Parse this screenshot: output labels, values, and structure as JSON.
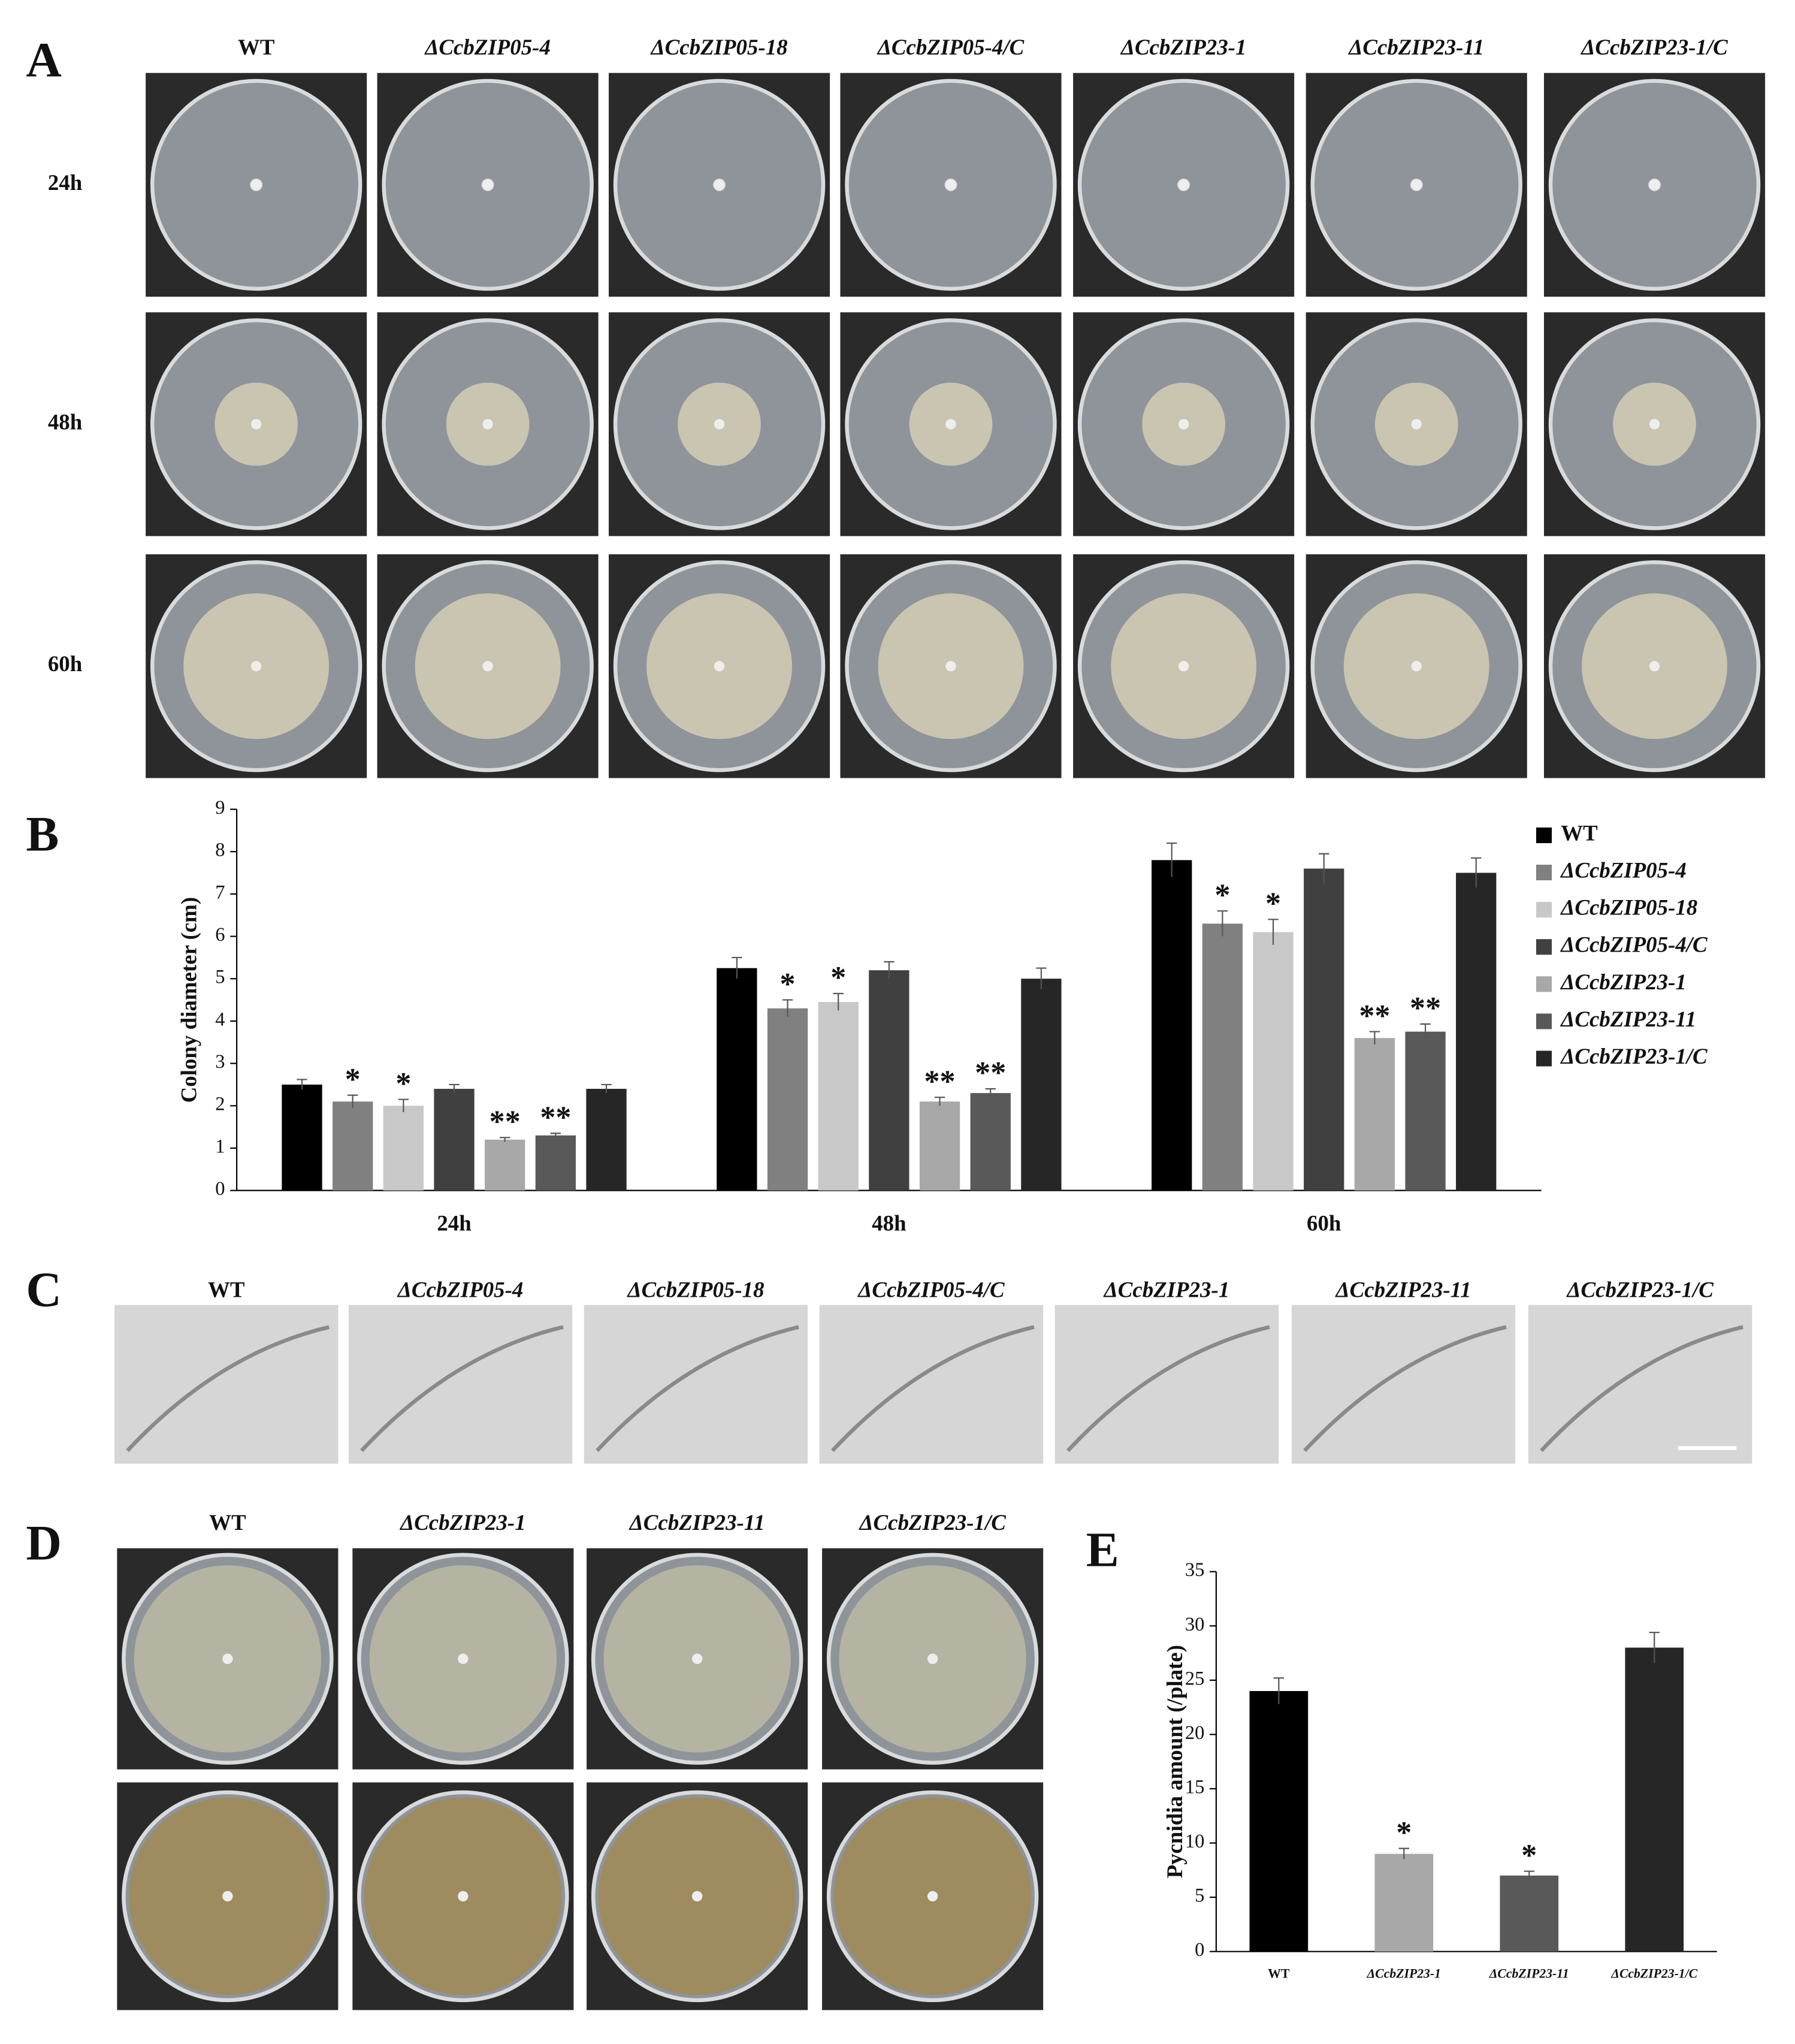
{
  "panels": {
    "a": "A",
    "b": "B",
    "c": "C",
    "d": "D",
    "e": "E"
  },
  "panel_a": {
    "strains": [
      "WT",
      "ΔCcbZIP05-4",
      "ΔCcbZIP05-18",
      "ΔCcbZIP05-4/C",
      "ΔCcbZIP23-1",
      "ΔCcbZIP23-11",
      "ΔCcbZIP23-1/C"
    ],
    "times": [
      "24h",
      "48h",
      "60h"
    ]
  },
  "panel_c": {
    "strains": [
      "WT",
      "ΔCcbZIP05-4",
      "ΔCcbZIP05-18",
      "ΔCcbZIP05-4/C",
      "ΔCcbZIP23-1",
      "ΔCcbZIP23-11",
      "ΔCcbZIP23-1/C"
    ]
  },
  "panel_d": {
    "strains": [
      "WT",
      "ΔCcbZIP23-1",
      "ΔCcbZIP23-11",
      "ΔCcbZIP23-1/C"
    ]
  },
  "chart_data": [
    {
      "type": "bar",
      "ylabel": "Colony diameter (cm)",
      "categories": [
        "24h",
        "48h",
        "60h"
      ],
      "ylim": [
        0,
        9
      ],
      "yticks": [
        0,
        1,
        2,
        3,
        4,
        5,
        6,
        7,
        8,
        9
      ],
      "legend": "right",
      "series": [
        {
          "name": "WT",
          "color": "#000000",
          "values": [
            2.5,
            5.25,
            7.8
          ],
          "errors": [
            0.12,
            0.25,
            0.4
          ],
          "significance": [
            null,
            null,
            null
          ]
        },
        {
          "name": "ΔCcbZIP05-4",
          "color": "#808080",
          "values": [
            2.1,
            4.3,
            6.3
          ],
          "errors": [
            0.15,
            0.2,
            0.3
          ],
          "significance": [
            "*",
            "*",
            "*"
          ]
        },
        {
          "name": "ΔCcbZIP05-18",
          "color": "#c8c8c8",
          "values": [
            2.0,
            4.45,
            6.1
          ],
          "errors": [
            0.15,
            0.2,
            0.3
          ],
          "significance": [
            "*",
            "*",
            "*"
          ]
        },
        {
          "name": "ΔCcbZIP05-4/C",
          "color": "#404040",
          "values": [
            2.4,
            5.2,
            7.6
          ],
          "errors": [
            0.1,
            0.2,
            0.35
          ],
          "significance": [
            null,
            null,
            null
          ]
        },
        {
          "name": "ΔCcbZIP23-1",
          "color": "#a8a8a8",
          "values": [
            1.2,
            2.1,
            3.6
          ],
          "errors": [
            0.05,
            0.1,
            0.15
          ],
          "significance": [
            "**",
            "**",
            "**"
          ]
        },
        {
          "name": "ΔCcbZIP23-11",
          "color": "#595959",
          "values": [
            1.3,
            2.3,
            3.75
          ],
          "errors": [
            0.05,
            0.1,
            0.18
          ],
          "significance": [
            "**",
            "**",
            "**"
          ]
        },
        {
          "name": "ΔCcbZIP23-1/C",
          "color": "#262626",
          "values": [
            2.4,
            5.0,
            7.5
          ],
          "errors": [
            0.1,
            0.25,
            0.35
          ],
          "significance": [
            null,
            null,
            null
          ]
        }
      ]
    },
    {
      "type": "bar",
      "ylabel": "Pycnidia amount (/plate)",
      "categories": [
        "WT",
        "ΔCcbZIP23-1",
        "ΔCcbZIP23-11",
        "ΔCcbZIP23-1/C"
      ],
      "values": [
        24,
        9,
        7,
        28
      ],
      "errors": [
        1.2,
        0.5,
        0.4,
        1.4
      ],
      "colors": [
        "#000000",
        "#a8a8a8",
        "#595959",
        "#262626"
      ],
      "significance": [
        null,
        "*",
        "*",
        null
      ],
      "ylim": [
        0,
        35
      ],
      "yticks": [
        0,
        5,
        10,
        15,
        20,
        25,
        30,
        35
      ]
    }
  ]
}
